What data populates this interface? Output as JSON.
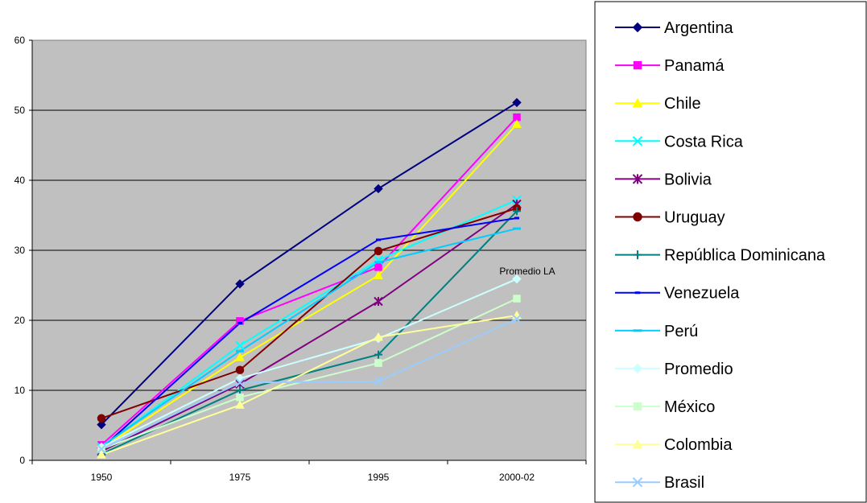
{
  "chart_data": {
    "type": "line",
    "categories": [
      "1950",
      "1975",
      "1995",
      "2000-02"
    ],
    "ylim": [
      0,
      60
    ],
    "yticks": [
      "0",
      "10",
      "20",
      "30",
      "40",
      "50",
      "60"
    ],
    "grid": "horizontal",
    "legend_position": "right",
    "plot_background": "#c0c0c0",
    "annotation": "Promedio LA",
    "series": [
      {
        "name": "Argentina",
        "values": [
          5.1,
          25.2,
          38.8,
          51.1
        ],
        "color": "#000080",
        "marker": "diamond"
      },
      {
        "name": "Panamá",
        "values": [
          2.2,
          19.9,
          27.6,
          49.0
        ],
        "color": "#ff00ff",
        "marker": "square"
      },
      {
        "name": "Chile",
        "values": [
          1.7,
          14.7,
          26.4,
          48.0
        ],
        "color": "#ffff00",
        "marker": "triangle"
      },
      {
        "name": "Costa Rica",
        "values": [
          1.9,
          16.4,
          28.6,
          37.2
        ],
        "color": "#00ffff",
        "marker": "x"
      },
      {
        "name": "Bolivia",
        "values": [
          1.3,
          10.9,
          22.7,
          36.6
        ],
        "color": "#800080",
        "marker": "star"
      },
      {
        "name": "Uruguay",
        "values": [
          6.0,
          12.9,
          29.9,
          36.0
        ],
        "color": "#800000",
        "marker": "circle"
      },
      {
        "name": "República Dominicana",
        "values": [
          0.9,
          10.0,
          15.1,
          35.6
        ],
        "color": "#008080",
        "marker": "plus"
      },
      {
        "name": "Venezuela",
        "values": [
          1.7,
          19.6,
          31.5,
          34.6
        ],
        "color": "#0000ff",
        "marker": "dash"
      },
      {
        "name": "Perú",
        "values": [
          2.0,
          15.6,
          28.3,
          33.1
        ],
        "color": "#00ccff",
        "marker": "bar"
      },
      {
        "name": "Promedio",
        "values": [
          1.9,
          11.7,
          17.4,
          25.9
        ],
        "color": "#ccffff",
        "marker": "diamond"
      },
      {
        "name": "México",
        "values": [
          1.6,
          9.0,
          13.9,
          23.1
        ],
        "color": "#ccffcc",
        "marker": "square"
      },
      {
        "name": "Colombia",
        "values": [
          0.8,
          7.9,
          17.6,
          20.7
        ],
        "color": "#ffff99",
        "marker": "triangle"
      },
      {
        "name": "Brasil",
        "values": [
          1.6,
          11.1,
          11.3,
          20.2
        ],
        "color": "#99ccff",
        "marker": "x"
      }
    ]
  }
}
